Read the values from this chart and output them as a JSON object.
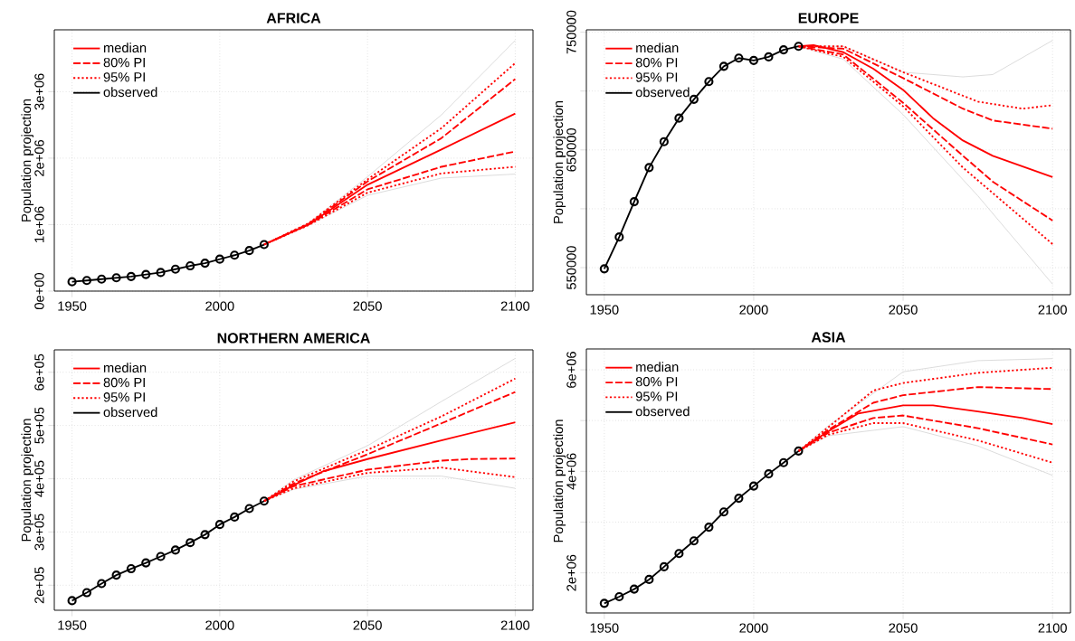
{
  "chart_data": [
    {
      "type": "line",
      "title": "AFRICA",
      "ylabel": "Population projection",
      "xlim": [
        1944,
        2106
      ],
      "ylim": [
        0,
        3930000
      ],
      "xticks": [
        1950,
        2000,
        2050,
        2100
      ],
      "yticks": [
        {
          "value": 0,
          "label": "0e+00"
        },
        {
          "value": 1000000,
          "label": "1e+06"
        },
        {
          "value": 2000000,
          "label": "2e+06"
        },
        {
          "value": 3000000,
          "label": "3e+06"
        }
      ],
      "grid": true,
      "legend": "top left",
      "series": [
        {
          "color": "#d3d3d3",
          "x": [
            2015,
            2030,
            2050,
            2075,
            2100
          ],
          "values": [
            700000,
            1020000,
            1720000,
            2650000,
            3770000
          ]
        },
        {
          "color": "#d3d3d3",
          "x": [
            2015,
            2030,
            2050,
            2075,
            2100
          ],
          "values": [
            700000,
            990000,
            1440000,
            1700000,
            1760000
          ]
        },
        {
          "name": "median",
          "color": "#ff0000",
          "line_style": "solid",
          "x": [
            2015,
            2030,
            2050,
            2075,
            2100
          ],
          "values": [
            700000,
            1000000,
            1600000,
            2130000,
            2670000
          ]
        },
        {
          "name": "80% PI",
          "color": "#ff0000",
          "line_style": "dashed",
          "x": [
            2015,
            2030,
            2050,
            2075,
            2100
          ],
          "values": [
            700000,
            1010000,
            1650000,
            2300000,
            3190000
          ]
        },
        {
          "name": "80% PI",
          "color": "#ff0000",
          "line_style": "dashed",
          "x": [
            2015,
            2030,
            2050,
            2075,
            2100
          ],
          "values": [
            700000,
            1000000,
            1530000,
            1870000,
            2100000
          ]
        },
        {
          "name": "95% PI",
          "color": "#ff0000",
          "line_style": "dotted",
          "x": [
            2015,
            2030,
            2050,
            2075,
            2100
          ],
          "values": [
            700000,
            1020000,
            1680000,
            2450000,
            3430000
          ]
        },
        {
          "name": "95% PI",
          "color": "#ff0000",
          "line_style": "dotted",
          "x": [
            2015,
            2030,
            2050,
            2075,
            2100
          ],
          "values": [
            700000,
            990000,
            1480000,
            1770000,
            1870000
          ]
        },
        {
          "name": "observed",
          "color": "#000000",
          "line_style": "solid",
          "marker": "circle",
          "x": [
            1950,
            1955,
            1960,
            1965,
            1970,
            1975,
            1980,
            1985,
            1990,
            1995,
            2000,
            2005,
            2010,
            2015
          ],
          "values": [
            140000,
            160000,
            180000,
            200000,
            220000,
            250000,
            280000,
            330000,
            380000,
            420000,
            480000,
            540000,
            610000,
            700000
          ]
        }
      ]
    },
    {
      "type": "line",
      "title": "EUROPE",
      "ylabel": "Population projection",
      "xlim": [
        1944,
        2106
      ],
      "ylim": [
        527000,
        752000
      ],
      "xticks": [
        1950,
        2000,
        2050,
        2100
      ],
      "yticks": [
        550000,
        {
          "value": 600000,
          "label": null
        },
        650000,
        {
          "value": 700000,
          "label": null
        },
        750000
      ],
      "grid": true,
      "legend": "top left",
      "series": [
        {
          "color": "#d3d3d3",
          "x": [
            2015,
            2030,
            2050,
            2070,
            2080,
            2100
          ],
          "values": [
            738000,
            738000,
            716000,
            712000,
            714000,
            743000
          ]
        },
        {
          "color": "#d3d3d3",
          "x": [
            2015,
            2030,
            2050,
            2075,
            2100
          ],
          "values": [
            738000,
            727000,
            680000,
            611000,
            536000
          ]
        },
        {
          "name": "median",
          "color": "#ff0000",
          "line_style": "solid",
          "x": [
            2015,
            2020,
            2030,
            2040,
            2050,
            2060,
            2070,
            2080,
            2090,
            2100
          ],
          "values": [
            738000,
            739000,
            733000,
            719000,
            701000,
            677000,
            658000,
            645000,
            636000,
            627000
          ]
        },
        {
          "name": "80% PI",
          "color": "#ff0000",
          "line_style": "dashed",
          "x": [
            2015,
            2030,
            2050,
            2070,
            2080,
            2100
          ],
          "values": [
            738000,
            736000,
            711000,
            685000,
            675000,
            668000
          ]
        },
        {
          "name": "80% PI",
          "color": "#ff0000",
          "line_style": "dashed",
          "x": [
            2015,
            2030,
            2050,
            2070,
            2080,
            2100
          ],
          "values": [
            738000,
            731000,
            690000,
            645000,
            623000,
            590000
          ]
        },
        {
          "name": "95% PI",
          "color": "#ff0000",
          "line_style": "dotted",
          "x": [
            2015,
            2030,
            2050,
            2075,
            2090,
            2100
          ],
          "values": [
            738000,
            738000,
            716000,
            691000,
            685000,
            688000
          ]
        },
        {
          "name": "95% PI",
          "color": "#ff0000",
          "line_style": "dotted",
          "x": [
            2015,
            2030,
            2050,
            2070,
            2100
          ],
          "values": [
            738000,
            729000,
            687000,
            635000,
            570000
          ]
        },
        {
          "name": "observed",
          "color": "#000000",
          "line_style": "solid",
          "marker": "circle",
          "x": [
            1950,
            1955,
            1960,
            1965,
            1970,
            1975,
            1980,
            1985,
            1990,
            1995,
            2000,
            2005,
            2010,
            2015
          ],
          "values": [
            549000,
            576000,
            606000,
            635000,
            657000,
            677000,
            693000,
            708000,
            721000,
            728000,
            726000,
            729000,
            735000,
            738000
          ]
        }
      ]
    },
    {
      "type": "line",
      "title": "NORTHERN AMERICA",
      "ylabel": "Population projection",
      "xlim": [
        1944,
        2106
      ],
      "ylim": [
        153000,
        642000
      ],
      "xticks": [
        1950,
        2000,
        2050,
        2100
      ],
      "yticks": [
        {
          "value": 200000,
          "label": "2e+05"
        },
        {
          "value": 300000,
          "label": "3e+05"
        },
        {
          "value": 400000,
          "label": "4e+05"
        },
        {
          "value": 500000,
          "label": "5e+05"
        },
        {
          "value": 600000,
          "label": "6e+05"
        }
      ],
      "grid": true,
      "legend": "top left",
      "series": [
        {
          "color": "#d3d3d3",
          "x": [
            2015,
            2025,
            2050,
            2075,
            2100
          ],
          "values": [
            358000,
            398000,
            462000,
            545000,
            626000
          ]
        },
        {
          "color": "#d3d3d3",
          "x": [
            2015,
            2025,
            2050,
            2075,
            2100
          ],
          "values": [
            358000,
            380000,
            405000,
            405000,
            382000
          ]
        },
        {
          "name": "median",
          "color": "#ff0000",
          "line_style": "solid",
          "x": [
            2015,
            2025,
            2035,
            2050,
            2075,
            2100
          ],
          "values": [
            358000,
            388000,
            414000,
            437000,
            472000,
            506000
          ]
        },
        {
          "name": "80% PI",
          "color": "#ff0000",
          "line_style": "dashed",
          "x": [
            2015,
            2025,
            2050,
            2075,
            2100
          ],
          "values": [
            358000,
            391000,
            446000,
            504000,
            563000
          ]
        },
        {
          "name": "80% PI",
          "color": "#ff0000",
          "line_style": "dashed",
          "x": [
            2015,
            2025,
            2050,
            2075,
            2085,
            2100
          ],
          "values": [
            358000,
            386000,
            417000,
            434000,
            437000,
            438000
          ]
        },
        {
          "name": "95% PI",
          "color": "#ff0000",
          "line_style": "dotted",
          "x": [
            2015,
            2025,
            2050,
            2075,
            2100
          ],
          "values": [
            358000,
            395000,
            454000,
            517000,
            588000
          ]
        },
        {
          "name": "95% PI",
          "color": "#ff0000",
          "line_style": "dotted",
          "x": [
            2015,
            2025,
            2050,
            2075,
            2100
          ],
          "values": [
            358000,
            382000,
            411000,
            421000,
            403000
          ]
        },
        {
          "name": "observed",
          "color": "#000000",
          "line_style": "solid",
          "marker": "circle",
          "x": [
            1950,
            1955,
            1960,
            1965,
            1970,
            1975,
            1980,
            1985,
            1990,
            1995,
            2000,
            2005,
            2010,
            2015
          ],
          "values": [
            171000,
            186000,
            203000,
            219000,
            231000,
            242000,
            254000,
            266000,
            280000,
            295000,
            314000,
            328000,
            344000,
            358000
          ]
        }
      ]
    },
    {
      "type": "line",
      "title": "ASIA",
      "ylabel": "Population projection",
      "xlim": [
        1944,
        2106
      ],
      "ylim": [
        1210000,
        6410000
      ],
      "xticks": [
        1950,
        2000,
        2050,
        2100
      ],
      "yticks": [
        {
          "value": 2000000,
          "label": "2e+06"
        },
        {
          "value": 3000000,
          "label": null
        },
        {
          "value": 4000000,
          "label": "4e+06"
        },
        {
          "value": 5000000,
          "label": null
        },
        {
          "value": 6000000,
          "label": "6e+06"
        }
      ],
      "grid": true,
      "legend": "top left",
      "series": [
        {
          "color": "#d3d3d3",
          "x": [
            2015,
            2025,
            2050,
            2075,
            2100
          ],
          "values": [
            4400000,
            4900000,
            5960000,
            6180000,
            6220000
          ]
        },
        {
          "color": "#d3d3d3",
          "x": [
            2015,
            2025,
            2050,
            2075,
            2100
          ],
          "values": [
            4400000,
            4700000,
            4880000,
            4500000,
            3920000
          ]
        },
        {
          "name": "median",
          "color": "#ff0000",
          "line_style": "solid",
          "x": [
            2015,
            2025,
            2035,
            2050,
            2060,
            2075,
            2090,
            2100
          ],
          "values": [
            4400000,
            4790000,
            5140000,
            5300000,
            5300000,
            5180000,
            5050000,
            4930000
          ]
        },
        {
          "name": "80% PI",
          "color": "#ff0000",
          "line_style": "dashed",
          "x": [
            2015,
            2025,
            2040,
            2050,
            2075,
            2100
          ],
          "values": [
            4400000,
            4820000,
            5350000,
            5500000,
            5660000,
            5620000
          ]
        },
        {
          "name": "80% PI",
          "color": "#ff0000",
          "line_style": "dashed",
          "x": [
            2015,
            2025,
            2040,
            2050,
            2075,
            2100
          ],
          "values": [
            4400000,
            4760000,
            5050000,
            5100000,
            4850000,
            4530000
          ]
        },
        {
          "name": "95% PI",
          "color": "#ff0000",
          "line_style": "dotted",
          "x": [
            2015,
            2025,
            2040,
            2050,
            2075,
            2100
          ],
          "values": [
            4400000,
            4870000,
            5590000,
            5740000,
            5940000,
            6040000
          ]
        },
        {
          "name": "95% PI",
          "color": "#ff0000",
          "line_style": "dotted",
          "x": [
            2015,
            2025,
            2040,
            2050,
            2075,
            2100
          ],
          "values": [
            4400000,
            4720000,
            4950000,
            4950000,
            4610000,
            4170000
          ]
        },
        {
          "name": "observed",
          "color": "#000000",
          "line_style": "solid",
          "marker": "circle",
          "x": [
            1950,
            1955,
            1960,
            1965,
            1970,
            1975,
            1980,
            1985,
            1990,
            1995,
            2000,
            2005,
            2010,
            2015
          ],
          "values": [
            1400000,
            1530000,
            1680000,
            1870000,
            2120000,
            2380000,
            2630000,
            2900000,
            3200000,
            3470000,
            3710000,
            3950000,
            4170000,
            4400000
          ]
        }
      ]
    }
  ]
}
